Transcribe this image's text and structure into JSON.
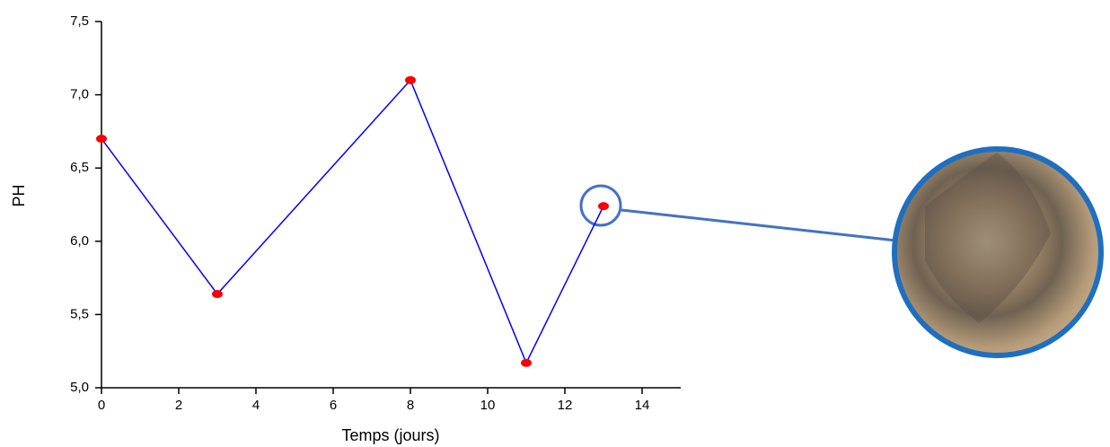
{
  "chart_data": {
    "type": "line",
    "x_label": "Temps (jours)",
    "y_label": "PH",
    "x": [
      0,
      3,
      8,
      11,
      13
    ],
    "series": [
      {
        "values": [
          6.7,
          5.64,
          7.1,
          5.17,
          6.24
        ],
        "color": "#0000ff",
        "marker_color": "#ff0000"
      }
    ],
    "xlim": [
      0,
      15
    ],
    "xticks": [
      0,
      2,
      4,
      6,
      8,
      10,
      12,
      14
    ],
    "ylim": [
      5.0,
      7.5
    ],
    "yticks": [
      {
        "value": 5.0,
        "label": "5,0"
      },
      {
        "value": 5.5,
        "label": "5,5"
      },
      {
        "value": 6.0,
        "label": "6,0"
      },
      {
        "value": 6.5,
        "label": "6,5"
      },
      {
        "value": 7.0,
        "label": "7,0"
      },
      {
        "value": 7.5,
        "label": "7,5"
      }
    ],
    "grid": false
  }
}
